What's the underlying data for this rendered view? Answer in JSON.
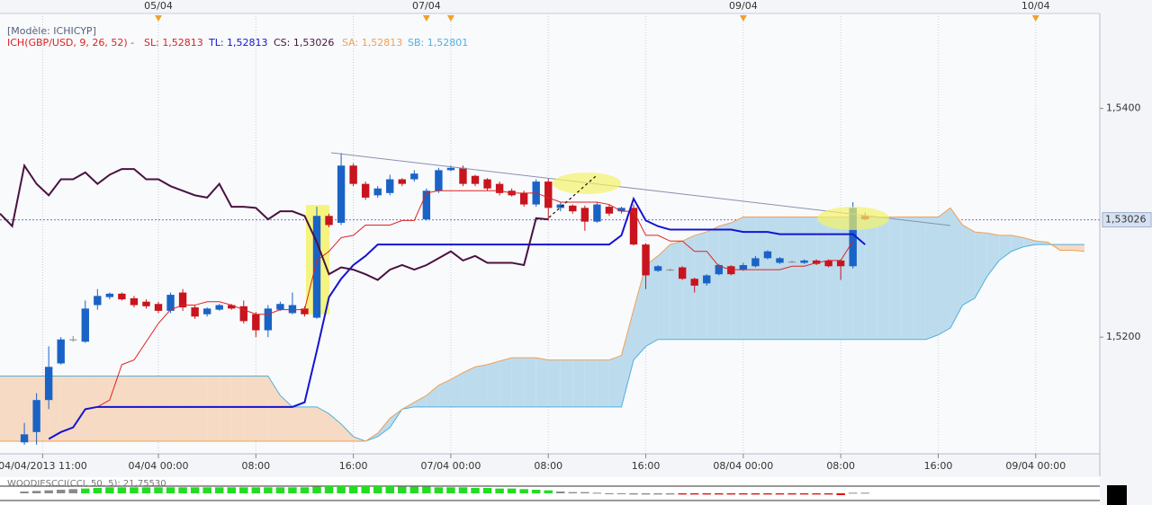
{
  "chart_data": {
    "type": "candlestick",
    "model_label": "[Modèle: ICHICYP]",
    "indicator_label": "ICH(GBP/USD, 9, 26, 52) -",
    "x": [
      -2,
      -1,
      0,
      1,
      2,
      3,
      4,
      5,
      6,
      7,
      8,
      9,
      10,
      11,
      12,
      13,
      14,
      15,
      16,
      17,
      18,
      19,
      20,
      21,
      22,
      23,
      24,
      25,
      26,
      27,
      28,
      29,
      30,
      31,
      32,
      33,
      34,
      35,
      36,
      37,
      38,
      39,
      40,
      41,
      42,
      43,
      44,
      45,
      46,
      47,
      48,
      49,
      50,
      51,
      52,
      53,
      54,
      55,
      56,
      57,
      58,
      59,
      60,
      61,
      62,
      63,
      64,
      65,
      66,
      67,
      68,
      69,
      70,
      71,
      72,
      73,
      74,
      75,
      76,
      77,
      78,
      79,
      80,
      81,
      82,
      83,
      84,
      85,
      86,
      87
    ],
    "xlim": [
      -2,
      88.26
    ],
    "xticks": [
      {
        "value": 1.5,
        "label": "04/04/2013 11:00"
      },
      {
        "value": 11,
        "label": "04/04 00:00"
      },
      {
        "value": 19,
        "label": "08:00"
      },
      {
        "value": 27,
        "label": "16:00"
      },
      {
        "value": 35,
        "label": "07/04 00:00"
      },
      {
        "value": 43,
        "label": "08:00"
      },
      {
        "value": 51,
        "label": "16:00"
      },
      {
        "value": 59,
        "label": "08/04 00:00"
      },
      {
        "value": 67,
        "label": "08:00"
      },
      {
        "value": 75,
        "label": "16:00"
      },
      {
        "value": 83,
        "label": "09/04 00:00"
      }
    ],
    "top_xticks": [
      {
        "value": 11,
        "label": "05/04"
      },
      {
        "value": 33,
        "label": "07/04"
      },
      {
        "value": 59,
        "label": "09/04"
      },
      {
        "value": 83,
        "label": "10/04"
      }
    ],
    "event_markers": [
      11,
      33,
      35,
      59,
      83
    ],
    "ylim": [
      1.5098,
      1.5483
    ],
    "yticks": [
      {
        "value": 1.54,
        "label": "1,5400"
      },
      {
        "value": 1.52,
        "label": "1,5200"
      }
    ],
    "grid": true,
    "last_price": {
      "value": 1.53026,
      "label": "1,53026"
    },
    "up_color": "#1a63c6",
    "down_color": "#c8141e",
    "flat_color": "#8a8a8a",
    "cloud_colors": {
      "up": "#bcdcee",
      "down": "#f6dac3"
    },
    "ohlc": {
      "open": [
        null,
        null,
        1.5108,
        1.5117,
        1.5145,
        1.5177,
        1.5198,
        1.5196,
        1.5228,
        1.5235,
        1.5238,
        1.5234,
        1.5231,
        1.5229,
        1.5223,
        1.5239,
        1.5226,
        1.522,
        1.5224,
        1.5228,
        1.5227,
        1.522,
        1.5206,
        1.5224,
        1.5221,
        1.5225,
        1.5217,
        1.5306,
        1.53,
        1.535,
        1.5334,
        1.5324,
        1.5326,
        1.5338,
        1.5338,
        1.5303,
        1.5328,
        1.5346,
        1.5348,
        1.5341,
        1.5338,
        1.5334,
        1.5328,
        1.5326,
        1.5316,
        1.5336,
        1.5313,
        1.5315,
        1.5313,
        1.5301,
        1.5314,
        1.531,
        1.5313,
        1.5281,
        1.5258,
        1.5259,
        1.5261,
        1.5251,
        1.5247,
        1.5255,
        1.5262,
        1.5259,
        1.5262,
        1.5269,
        1.5265,
        1.5266,
        1.5265,
        1.5267,
        1.5267,
        1.5267,
        1.5262,
        1.5306,
        null,
        null,
        null,
        null,
        null,
        null,
        null,
        null,
        null,
        null,
        null,
        null,
        null,
        null,
        null,
        null,
        null,
        null
      ],
      "high": [
        null,
        null,
        1.5125,
        1.5151,
        1.5192,
        1.52,
        1.5201,
        1.5232,
        1.5242,
        1.5239,
        1.5239,
        1.5236,
        1.5233,
        1.5231,
        1.5239,
        1.5242,
        1.5228,
        1.5226,
        1.5229,
        1.5229,
        1.5232,
        1.5222,
        1.5228,
        1.5231,
        1.5239,
        1.5227,
        1.5314,
        1.5308,
        1.5361,
        1.5352,
        1.5336,
        1.5332,
        1.5342,
        1.5339,
        1.5346,
        1.533,
        1.5348,
        1.535,
        1.535,
        1.5342,
        1.5339,
        1.5336,
        1.533,
        1.5328,
        1.5338,
        1.5339,
        1.5318,
        1.5316,
        1.5315,
        1.5318,
        1.5316,
        1.5314,
        1.5316,
        1.5282,
        1.5263,
        1.526,
        1.5262,
        1.5252,
        1.5255,
        1.5264,
        1.5263,
        1.5265,
        1.5271,
        1.5276,
        1.527,
        1.5267,
        1.5268,
        1.5268,
        1.5268,
        1.5268,
        1.5318,
        1.5309,
        null,
        null,
        null,
        null,
        null,
        null,
        null,
        null,
        null,
        null,
        null,
        null,
        null,
        null,
        null,
        null,
        null,
        null
      ],
      "low": [
        null,
        null,
        1.5106,
        1.5106,
        1.5137,
        1.5176,
        1.5196,
        1.5195,
        1.5224,
        1.5233,
        1.5232,
        1.5226,
        1.5225,
        1.5221,
        1.5221,
        1.5223,
        1.5216,
        1.5218,
        1.5223,
        1.5224,
        1.5212,
        1.52,
        1.52,
        1.5223,
        1.522,
        1.5218,
        1.5216,
        1.5296,
        1.5298,
        1.5332,
        1.532,
        1.5322,
        1.5324,
        1.5332,
        1.5336,
        1.5302,
        1.5326,
        1.5345,
        1.5332,
        1.5332,
        1.5328,
        1.5324,
        1.5323,
        1.5314,
        1.5314,
        1.5302,
        1.531,
        1.5308,
        1.5293,
        1.53,
        1.5306,
        1.5308,
        1.528,
        1.5242,
        1.5257,
        1.5258,
        1.525,
        1.5239,
        1.5245,
        1.5254,
        1.5254,
        1.5258,
        1.5261,
        1.5268,
        1.5264,
        1.5265,
        1.5264,
        1.5263,
        1.5261,
        1.525,
        1.526,
        1.5302,
        null,
        null,
        null,
        null,
        null,
        null,
        null,
        null,
        null,
        null,
        null,
        null,
        null,
        null,
        null,
        null,
        null,
        null
      ],
      "close": [
        null,
        null,
        1.5115,
        1.5145,
        1.5174,
        1.5198,
        1.5198,
        1.5225,
        1.5236,
        1.5238,
        1.5233,
        1.5228,
        1.5227,
        1.5223,
        1.5237,
        1.5226,
        1.5218,
        1.5225,
        1.5228,
        1.5225,
        1.5214,
        1.5206,
        1.5225,
        1.5229,
        1.5228,
        1.522,
        1.5306,
        1.5298,
        1.535,
        1.5334,
        1.5322,
        1.533,
        1.5338,
        1.5334,
        1.5343,
        1.5328,
        1.5346,
        1.5348,
        1.5334,
        1.5334,
        1.533,
        1.5326,
        1.5324,
        1.5316,
        1.5336,
        1.5313,
        1.5316,
        1.531,
        1.5301,
        1.5316,
        1.5308,
        1.5313,
        1.5281,
        1.5254,
        1.5262,
        1.5259,
        1.5251,
        1.5245,
        1.5254,
        1.5263,
        1.5255,
        1.5263,
        1.5269,
        1.5275,
        1.5269,
        1.5266,
        1.5267,
        1.5264,
        1.5262,
        1.5262,
        1.5313,
        1.5303,
        null,
        null,
        null,
        null,
        null,
        null,
        null,
        null,
        null,
        null,
        null,
        null,
        null,
        null,
        null,
        null,
        null,
        null
      ]
    },
    "series": [
      {
        "name": "SL: 1,52813",
        "color": "#e02020",
        "width": 1,
        "values": [
          null,
          null,
          null,
          null,
          null,
          null,
          null,
          1.5137,
          1.5139,
          1.5145,
          1.5176,
          1.518,
          1.5196,
          1.5212,
          1.5224,
          1.5228,
          1.5228,
          1.5231,
          1.5231,
          1.5228,
          1.5224,
          1.522,
          1.522,
          1.5224,
          1.5224,
          1.5224,
          1.5267,
          1.5275,
          1.5287,
          1.5289,
          1.5298,
          1.5298,
          1.5298,
          1.5302,
          1.5302,
          1.5326,
          1.5328,
          1.5328,
          1.5328,
          1.5328,
          1.5328,
          1.5328,
          1.5326,
          1.5326,
          1.5326,
          1.5322,
          1.5318,
          1.5318,
          1.5318,
          1.5318,
          1.5316,
          1.531,
          1.531,
          1.5289,
          1.5289,
          1.5284,
          1.5284,
          1.5275,
          1.5275,
          1.5262,
          1.5259,
          1.5259,
          1.5259,
          1.5259,
          1.5259,
          1.5262,
          1.5262,
          1.5265,
          1.5267,
          1.5267,
          1.5284,
          null,
          null,
          null,
          null,
          null,
          null,
          null,
          null,
          null,
          null,
          null,
          null,
          null,
          null,
          null,
          null,
          null,
          null,
          null
        ]
      },
      {
        "name": "TL: 1,52813",
        "color": "#1414d2",
        "width": 2,
        "values": [
          null,
          null,
          null,
          null,
          1.5111,
          1.5117,
          1.5121,
          1.5137,
          1.5139,
          1.5139,
          1.5139,
          1.5139,
          1.5139,
          1.5139,
          1.5139,
          1.5139,
          1.5139,
          1.5139,
          1.5139,
          1.5139,
          1.5139,
          1.5139,
          1.5139,
          1.5139,
          1.5139,
          1.5143,
          1.5188,
          1.5235,
          1.5251,
          1.5263,
          1.5271,
          1.5281,
          1.5281,
          1.5281,
          1.5281,
          1.5281,
          1.5281,
          1.5281,
          1.5281,
          1.5281,
          1.5281,
          1.5281,
          1.5281,
          1.5281,
          1.5281,
          1.5281,
          1.5281,
          1.5281,
          1.5281,
          1.5281,
          1.5281,
          1.5289,
          1.5321,
          1.5302,
          1.5297,
          1.5294,
          1.5294,
          1.5294,
          1.5294,
          1.5294,
          1.5294,
          1.5292,
          1.5292,
          1.5292,
          1.529,
          1.529,
          1.529,
          1.529,
          1.529,
          1.529,
          1.529,
          1.5281,
          null,
          null,
          null,
          null,
          null,
          null,
          null,
          null,
          null,
          null,
          null,
          null,
          null,
          null,
          null,
          null,
          null,
          null
        ]
      },
      {
        "name": "CS: 1,53026",
        "color": "#4a1240",
        "width": 2,
        "values": [
          1.5308,
          1.5297,
          1.535,
          1.5334,
          1.5324,
          1.5338,
          1.5338,
          1.5344,
          1.5334,
          1.5342,
          1.5347,
          1.5347,
          1.5338,
          1.5338,
          1.5332,
          1.5328,
          1.5324,
          1.5322,
          1.5334,
          1.5314,
          1.5314,
          1.5313,
          1.5303,
          1.531,
          1.531,
          1.5306,
          1.5283,
          1.5255,
          1.5261,
          1.5259,
          1.5255,
          1.525,
          1.5259,
          1.5263,
          1.5259,
          1.5263,
          1.5269,
          1.5275,
          1.5267,
          1.5271,
          1.5265,
          1.5265,
          1.5265,
          1.5263,
          1.5304,
          1.5303,
          null,
          null,
          null,
          null,
          null,
          null,
          null,
          null,
          null,
          null,
          null,
          null,
          null,
          null,
          null,
          null,
          null,
          null,
          null,
          null,
          null,
          null,
          null,
          null,
          null,
          null,
          null,
          null,
          null,
          null,
          null,
          null,
          null,
          null,
          null,
          null,
          null,
          null,
          null,
          null,
          null,
          null,
          null,
          null
        ]
      },
      {
        "name": "SA: 1,52813",
        "color": "#f0a055",
        "width": 1,
        "values": [
          1.5109,
          1.5109,
          1.5109,
          1.5109,
          1.5109,
          1.5109,
          1.5109,
          1.5109,
          1.5109,
          1.5109,
          1.5109,
          1.5109,
          1.5109,
          1.5109,
          1.5109,
          1.5109,
          1.5109,
          1.5109,
          1.5109,
          1.5109,
          1.5109,
          1.5109,
          1.5109,
          1.5109,
          1.5109,
          1.5109,
          1.5109,
          1.5109,
          1.5109,
          1.5109,
          1.5109,
          1.5116,
          1.5129,
          1.5137,
          1.5143,
          1.5149,
          1.5158,
          1.5163,
          1.5169,
          1.5174,
          1.5176,
          1.5179,
          1.5182,
          1.5182,
          1.5182,
          1.518,
          1.518,
          1.518,
          1.518,
          1.518,
          1.518,
          1.5184,
          1.5224,
          1.5263,
          1.5271,
          1.5281,
          1.5284,
          1.5289,
          1.5292,
          1.5297,
          1.53,
          1.5305,
          1.5305,
          1.5305,
          1.5305,
          1.5305,
          1.5305,
          1.5305,
          1.5305,
          1.5305,
          1.5305,
          1.5305,
          1.5305,
          1.5305,
          1.5305,
          1.5305,
          1.5305,
          1.5305,
          1.5313,
          1.5298,
          1.5292,
          1.5291,
          1.5289,
          1.5289,
          1.5287,
          1.5284,
          1.5283,
          1.5276,
          1.5276,
          1.5275
        ]
      },
      {
        "name": "SB: 1,52801",
        "color": "#4fb0e0",
        "width": 1,
        "values": [
          1.5166,
          1.5166,
          1.5166,
          1.5166,
          1.5166,
          1.5166,
          1.5166,
          1.5166,
          1.5166,
          1.5166,
          1.5166,
          1.5166,
          1.5166,
          1.5166,
          1.5166,
          1.5166,
          1.5166,
          1.5166,
          1.5166,
          1.5166,
          1.5166,
          1.5166,
          1.5166,
          1.5149,
          1.5139,
          1.5139,
          1.5139,
          1.5133,
          1.5124,
          1.5113,
          1.5109,
          1.5113,
          1.5121,
          1.5137,
          1.5139,
          1.5139,
          1.5139,
          1.5139,
          1.5139,
          1.5139,
          1.5139,
          1.5139,
          1.5139,
          1.5139,
          1.5139,
          1.5139,
          1.5139,
          1.5139,
          1.5139,
          1.5139,
          1.5139,
          1.5139,
          1.518,
          1.5192,
          1.5198,
          1.5198,
          1.5198,
          1.5198,
          1.5198,
          1.5198,
          1.5198,
          1.5198,
          1.5198,
          1.5198,
          1.5198,
          1.5198,
          1.5198,
          1.5198,
          1.5198,
          1.5198,
          1.5198,
          1.5198,
          1.5198,
          1.5198,
          1.5198,
          1.5198,
          1.5198,
          1.5202,
          1.5208,
          1.5228,
          1.5234,
          1.5253,
          1.5267,
          1.5275,
          1.5279,
          1.5281,
          1.5281,
          1.5281,
          1.5281,
          1.5281
        ]
      }
    ],
    "indicator": {
      "label": "WOODIESCCI(CCI, 50, 5): 21,75530",
      "ylim": [
        -150,
        150
      ],
      "values": [
        null,
        null,
        30,
        40,
        50,
        60,
        70,
        80,
        90,
        100,
        100,
        100,
        100,
        100,
        100,
        100,
        100,
        100,
        100,
        100,
        100,
        100,
        100,
        100,
        100,
        100,
        110,
        120,
        120,
        120,
        120,
        120,
        120,
        110,
        110,
        110,
        100,
        100,
        100,
        90,
        90,
        80,
        80,
        70,
        60,
        50,
        30,
        20,
        20,
        10,
        -10,
        -10,
        -20,
        -20,
        -20,
        -20,
        -20,
        -20,
        -20,
        -20,
        -20,
        -20,
        -20,
        -20,
        -20,
        -20,
        -20,
        -20,
        -20,
        -30,
        10,
        10,
        null,
        null,
        null,
        null,
        null,
        null,
        null,
        null,
        null,
        null,
        null,
        null,
        null,
        null,
        null,
        null,
        null,
        null
      ],
      "bar_colors": [
        null,
        null,
        "#8a8a8a",
        "#8a8a8a",
        "#8a8a8a",
        "#8a8a8a",
        "#8a8a8a",
        "#22dd22",
        "#22dd22",
        "#22dd22",
        "#22dd22",
        "#22dd22",
        "#22dd22",
        "#22dd22",
        "#22dd22",
        "#22dd22",
        "#22dd22",
        "#22dd22",
        "#22dd22",
        "#22dd22",
        "#22dd22",
        "#22dd22",
        "#22dd22",
        "#22dd22",
        "#22dd22",
        "#22dd22",
        "#22dd22",
        "#22dd22",
        "#22dd22",
        "#22dd22",
        "#22dd22",
        "#22dd22",
        "#22dd22",
        "#22dd22",
        "#22dd22",
        "#22dd22",
        "#22dd22",
        "#22dd22",
        "#22dd22",
        "#22dd22",
        "#22dd22",
        "#22dd22",
        "#22dd22",
        "#22dd22",
        "#22dd22",
        "#22dd22",
        "#8a8a8a",
        "#8a8a8a",
        "#8a8a8a",
        "#8a8a8a",
        "#8a8a8a",
        "#8a8a8a",
        "#8a8a8a",
        "#8a8a8a",
        "#8a8a8a",
        "#8a8a8a",
        "#e01010",
        "#e01010",
        "#e01010",
        "#e01010",
        "#e01010",
        "#e01010",
        "#e01010",
        "#e01010",
        "#e01010",
        "#e01010",
        "#e01010",
        "#e01010",
        "#e01010",
        "#e01010",
        "#8a8a8a",
        "#8a8a8a",
        null,
        null,
        null,
        null,
        null,
        null,
        null,
        null,
        null,
        null,
        null,
        null,
        null,
        null,
        null,
        null,
        null,
        null
      ]
    }
  }
}
